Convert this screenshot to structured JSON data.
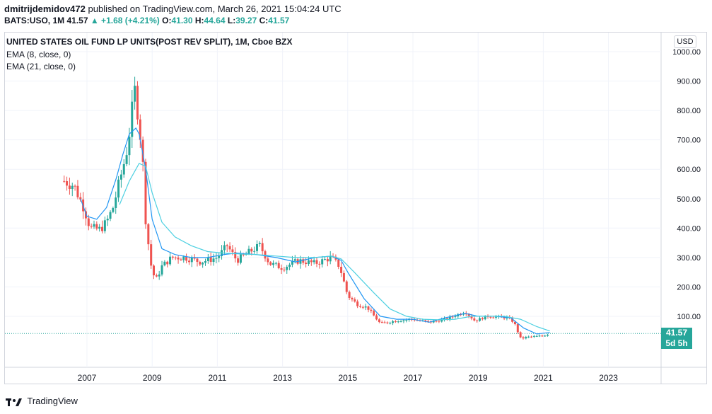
{
  "header": {
    "user": "dmitrijdemidov472",
    "published_text": "published on TradingView.com, March 26, 2021 15:04:24 UTC",
    "symbol_line": "BATS:USO, 1M",
    "last": "41.57",
    "change": "▲ +1.68 (+4.21%)",
    "o_label": "O:",
    "o": "41.30",
    "h_label": "H:",
    "h": "44.64",
    "l_label": "L:",
    "l": "39.27",
    "c_label": "C:",
    "c": "41.57"
  },
  "legend": {
    "title": "UNITED STATES OIL FUND LP UNITS(POST REV SPLIT), 1M, Cboe BZX",
    "ema1": "EMA (8, close, 0)",
    "ema2": "EMA (21, close, 0)"
  },
  "currency": "USD",
  "price_tag": {
    "value": "41.57",
    "countdown": "5d 5h"
  },
  "footer": {
    "brand": "TradingView"
  },
  "colors": {
    "up": "#26a69a",
    "down": "#ef5350",
    "ema8": "#2196f3",
    "ema21": "#4dd0e1"
  },
  "chart_data": {
    "type": "candlestick",
    "title": "UNITED STATES OIL FUND LP UNITS(POST REV SPLIT), 1M, Cboe BZX",
    "ylim": [
      0,
      1000
    ],
    "y_ticks": [
      "1000.00",
      "900.00",
      "800.00",
      "700.00",
      "600.00",
      "500.00",
      "400.00",
      "300.00",
      "200.00",
      "100.00"
    ],
    "x_ticks": [
      "2007",
      "2009",
      "2011",
      "2013",
      "2015",
      "2017",
      "2019",
      "2021",
      "2023"
    ],
    "series": [
      {
        "name": "EMA (8, close, 0)",
        "x": [
          2006.8,
          2007.0,
          2007.3,
          2007.6,
          2007.9,
          2008.1,
          2008.3,
          2008.5,
          2008.6,
          2008.8,
          2009.0,
          2009.3,
          2009.7,
          2010.2,
          2010.7,
          2011.2,
          2011.6,
          2012.2,
          2012.8,
          2013.4,
          2014.0,
          2014.5,
          2014.8,
          2015.0,
          2015.5,
          2016.0,
          2016.5,
          2017.0,
          2017.5,
          2018.0,
          2018.6,
          2019.0,
          2019.5,
          2020.0,
          2020.4,
          2020.8,
          2021.2
        ],
        "y": [
          500,
          440,
          430,
          470,
          570,
          650,
          720,
          740,
          720,
          600,
          430,
          330,
          310,
          300,
          300,
          310,
          315,
          310,
          300,
          285,
          300,
          305,
          290,
          250,
          160,
          100,
          90,
          90,
          80,
          95,
          110,
          100,
          100,
          95,
          60,
          40,
          45
        ]
      },
      {
        "name": "EMA (21, close, 0)",
        "x": [
          2008.0,
          2008.3,
          2008.6,
          2008.8,
          2009.0,
          2009.3,
          2009.7,
          2010.2,
          2010.7,
          2011.2,
          2011.7,
          2012.2,
          2012.8,
          2013.4,
          2014.0,
          2014.5,
          2014.8,
          2015.2,
          2015.8,
          2016.3,
          2016.8,
          2017.3,
          2017.8,
          2018.3,
          2018.8,
          2019.3,
          2019.8,
          2020.3,
          2020.8,
          2021.2
        ],
        "y": [
          480,
          560,
          620,
          610,
          520,
          420,
          370,
          340,
          320,
          315,
          312,
          310,
          305,
          300,
          300,
          305,
          295,
          250,
          180,
          125,
          100,
          90,
          88,
          90,
          100,
          100,
          100,
          90,
          65,
          50
        ]
      }
    ],
    "current_price": 41.57
  }
}
